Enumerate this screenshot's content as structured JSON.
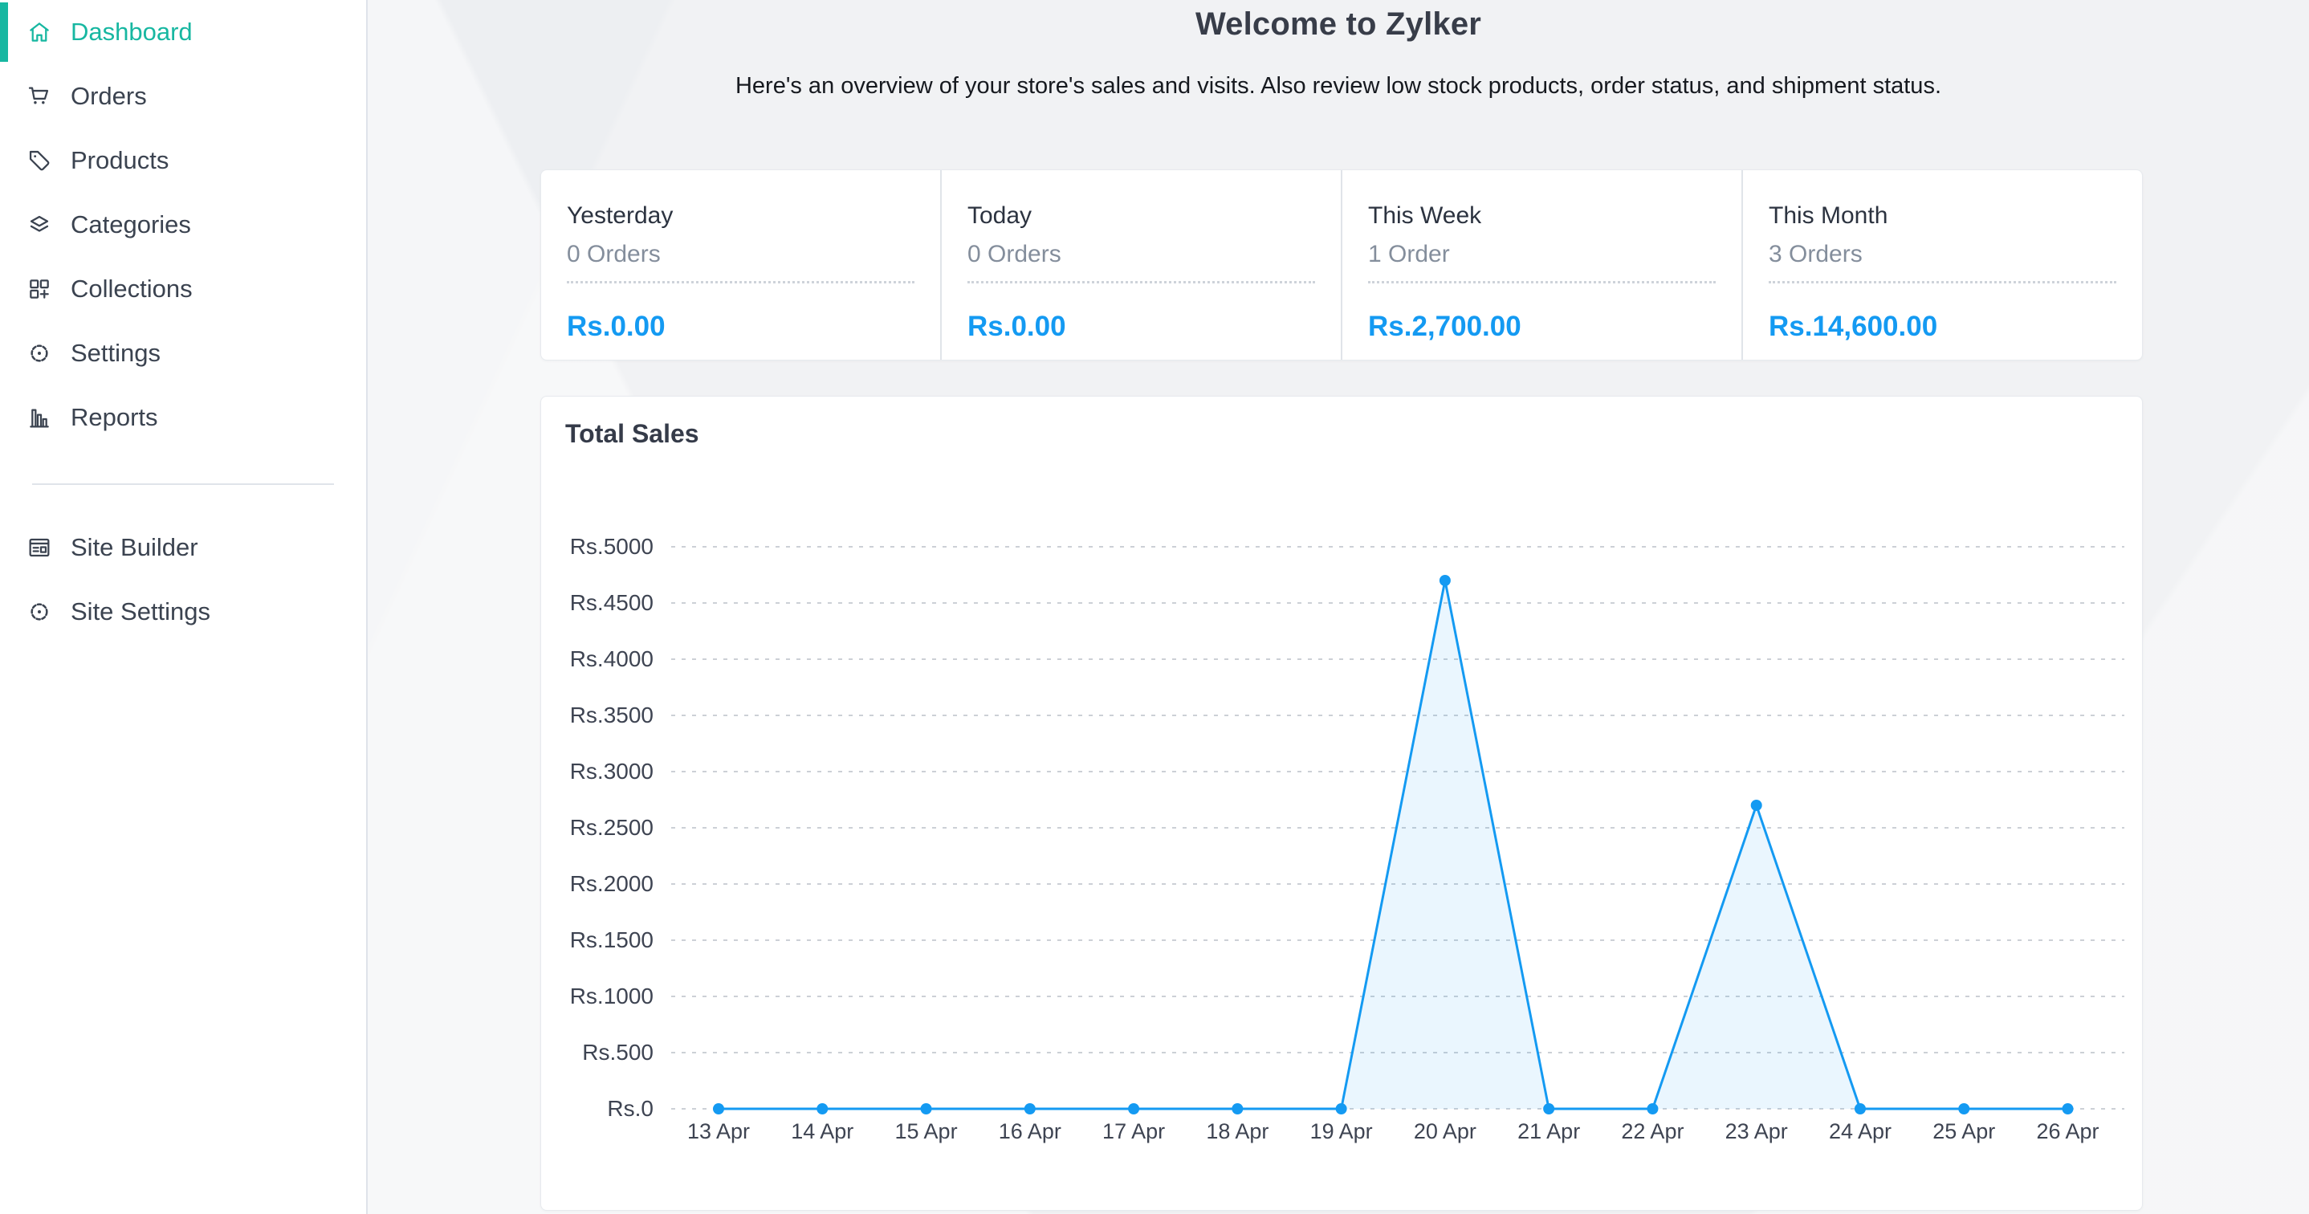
{
  "sidebar": {
    "items": [
      {
        "label": "Dashboard",
        "icon": "home-icon",
        "active": true
      },
      {
        "label": "Orders",
        "icon": "cart-icon",
        "active": false
      },
      {
        "label": "Products",
        "icon": "tag-icon",
        "active": false
      },
      {
        "label": "Categories",
        "icon": "layers-icon",
        "active": false
      },
      {
        "label": "Collections",
        "icon": "grid-plus-icon",
        "active": false
      },
      {
        "label": "Settings",
        "icon": "gear-icon",
        "active": false
      },
      {
        "label": "Reports",
        "icon": "bar-chart-icon",
        "active": false
      }
    ],
    "secondary_items": [
      {
        "label": "Site Builder",
        "icon": "browser-layout-icon",
        "active": false
      },
      {
        "label": "Site Settings",
        "icon": "gear-icon",
        "active": false
      }
    ]
  },
  "header": {
    "title": "Welcome to Zylker",
    "subtitle": "Here's an overview of your store's sales and visits. Also review low stock products, order status, and shipment status."
  },
  "stats": {
    "cards": [
      {
        "period": "Yesterday",
        "orders": "0 Orders",
        "amount": "Rs.0.00"
      },
      {
        "period": "Today",
        "orders": "0 Orders",
        "amount": "Rs.0.00"
      },
      {
        "period": "This Week",
        "orders": "1 Order",
        "amount": "Rs.2,700.00"
      },
      {
        "period": "This Month",
        "orders": "3 Orders",
        "amount": "Rs.14,600.00"
      }
    ]
  },
  "chart_panel": {
    "title": "Total Sales"
  },
  "chart_data": {
    "type": "line",
    "title": "Total Sales",
    "x": [
      "13 Apr",
      "14 Apr",
      "15 Apr",
      "16 Apr",
      "17 Apr",
      "18 Apr",
      "19 Apr",
      "20 Apr",
      "21 Apr",
      "22 Apr",
      "23 Apr",
      "24 Apr",
      "25 Apr",
      "26 Apr"
    ],
    "values": [
      0,
      0,
      0,
      0,
      0,
      0,
      0,
      4700,
      0,
      0,
      2700,
      0,
      0,
      0
    ],
    "y_ticks": [
      5000,
      4500,
      4000,
      3500,
      3000,
      2500,
      2000,
      1500,
      1000,
      500,
      0
    ],
    "y_tick_labels": [
      "Rs.5000",
      "Rs.4500",
      "Rs.4000",
      "Rs.3500",
      "Rs.3000",
      "Rs.2500",
      "Rs.2000",
      "Rs.1500",
      "Rs.1000",
      "Rs.500",
      "Rs.0"
    ],
    "ylim": [
      0,
      5000
    ],
    "xlabel": "",
    "ylabel": "",
    "currency_prefix": "Rs.",
    "grid": "horizontal-dashed",
    "legend": "none",
    "markers": true,
    "line_color": "#149af2",
    "fill_color": "rgba(20,154,242,0.09)",
    "grid_color": "#ccd0d6",
    "tick_color": "#3e4452"
  },
  "colors": {
    "accent_teal": "#17b7a1",
    "accent_blue": "#149af2",
    "background": "#f1f2f4",
    "card_background": "#ffffff",
    "sidebar_text": "#3b4350",
    "muted_text": "#848e9c"
  }
}
